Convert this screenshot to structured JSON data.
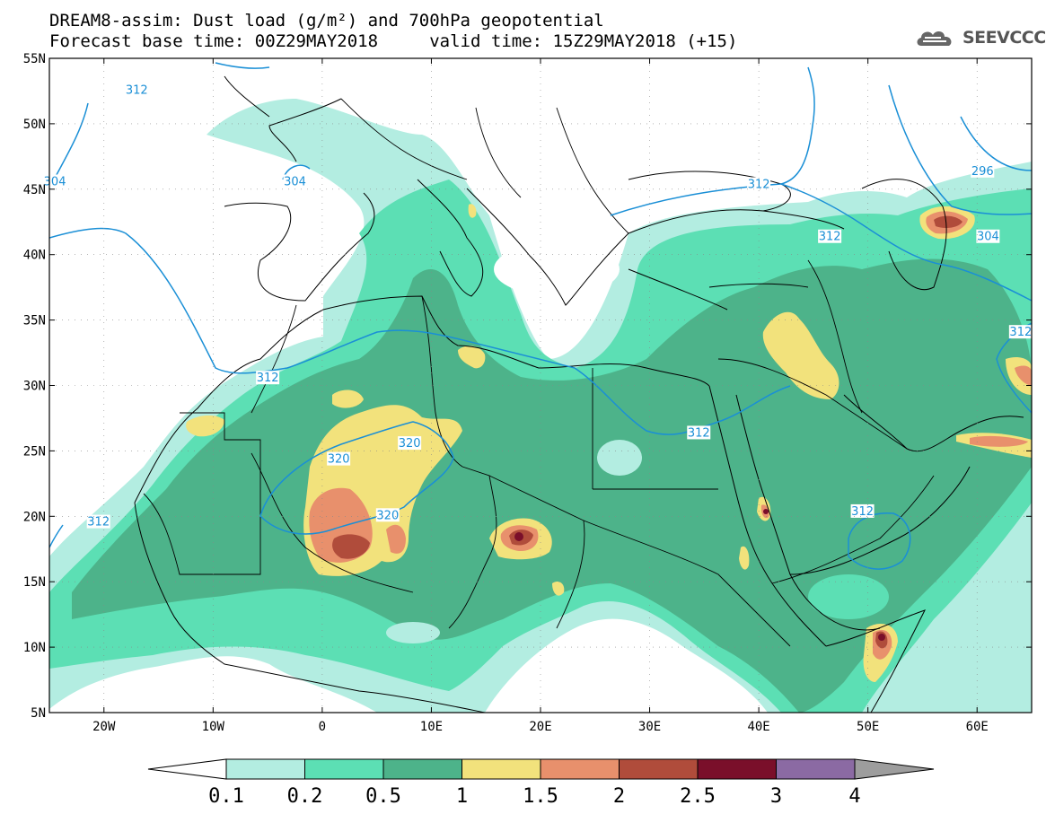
{
  "header": {
    "title_line1": "DREAM8-assim: Dust load (g/m²) and 700hPa geopotential",
    "title_line2": "Forecast base time: 00Z29MAY2018     valid time: 15Z29MAY2018 (+15)"
  },
  "logo": {
    "text": "SEEVCCC",
    "icon": "cloud-icon"
  },
  "map": {
    "lon_range": [
      -25,
      65
    ],
    "lat_range": [
      5,
      55
    ],
    "lat_labels": [
      {
        "lat": 55,
        "text": "55N"
      },
      {
        "lat": 50,
        "text": "50N"
      },
      {
        "lat": 45,
        "text": "45N"
      },
      {
        "lat": 40,
        "text": "40N"
      },
      {
        "lat": 35,
        "text": "35N"
      },
      {
        "lat": 30,
        "text": "30N"
      },
      {
        "lat": 25,
        "text": "25N"
      },
      {
        "lat": 20,
        "text": "20N"
      },
      {
        "lat": 15,
        "text": "15N"
      },
      {
        "lat": 10,
        "text": "10N"
      },
      {
        "lat": 5,
        "text": "5N"
      }
    ],
    "lon_labels": [
      {
        "lon": -20,
        "text": "20W"
      },
      {
        "lon": -10,
        "text": "10W"
      },
      {
        "lon": 0,
        "text": "0"
      },
      {
        "lon": 10,
        "text": "10E"
      },
      {
        "lon": 20,
        "text": "20E"
      },
      {
        "lon": 30,
        "text": "30E"
      },
      {
        "lon": 40,
        "text": "40E"
      },
      {
        "lon": 50,
        "text": "50E"
      },
      {
        "lon": 60,
        "text": "60E"
      }
    ],
    "contour_labels": [
      {
        "text": "312",
        "lon": -17,
        "lat": 52.5
      },
      {
        "text": "304",
        "lon": -2.5,
        "lat": 45.5
      },
      {
        "text": "304",
        "lon": -24.5,
        "lat": 45.5
      },
      {
        "text": "312",
        "lon": -20.5,
        "lat": 19.5
      },
      {
        "text": "312",
        "lon": -5,
        "lat": 30.5
      },
      {
        "text": "320",
        "lon": 1.5,
        "lat": 24.3
      },
      {
        "text": "320",
        "lon": 8,
        "lat": 25.5
      },
      {
        "text": "320",
        "lon": 6,
        "lat": 20
      },
      {
        "text": "312",
        "lon": 34.5,
        "lat": 26.3
      },
      {
        "text": "312",
        "lon": 40,
        "lat": 45.3
      },
      {
        "text": "312",
        "lon": 46.5,
        "lat": 41.3
      },
      {
        "text": "296",
        "lon": 60.5,
        "lat": 46.3
      },
      {
        "text": "304",
        "lon": 61,
        "lat": 41.3
      },
      {
        "text": "312",
        "lon": 49.5,
        "lat": 20.3
      },
      {
        "text": "312",
        "lon": 64,
        "lat": 34
      }
    ]
  },
  "colorbar": {
    "labels": [
      "0.1",
      "0.2",
      "0.5",
      "1",
      "1.5",
      "2",
      "2.5",
      "3",
      "4"
    ],
    "colors": [
      "#ffffff",
      "#b3ede1",
      "#5cdfb4",
      "#4db38a",
      "#f2e27c",
      "#e8906c",
      "#b04c3b",
      "#7a0f2a",
      "#8b6aa3",
      "#9d9d9d"
    ]
  },
  "dust_colors": {
    "c01": "#b3ede1",
    "c02": "#5cdfb4",
    "c05": "#4db38a",
    "c1": "#f2e27c",
    "c15": "#e8906c",
    "c2": "#b04c3b",
    "c25": "#7a0f2a"
  },
  "contour_color": "#1a8fd6"
}
